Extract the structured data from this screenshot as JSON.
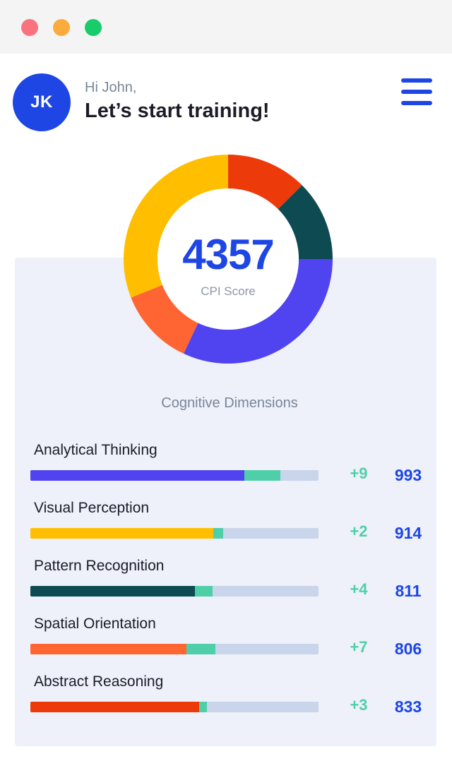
{
  "window": {
    "dots": [
      "#f9737f",
      "#fbab3c",
      "#19cc6b"
    ]
  },
  "user": {
    "initials": "JK",
    "avatar_color": "#1d46e5"
  },
  "greeting": {
    "small": "Hi John,",
    "big": "Let’s start training!"
  },
  "menu": {
    "color": "#1d46e5",
    "icon": "hamburger-menu-icon"
  },
  "score": {
    "value": "4357",
    "label": "CPI Score",
    "color": "#1d46e5"
  },
  "donut_segments": [
    {
      "name": "Abstract Reasoning",
      "fraction": 0.125,
      "color": "#ec3a0b"
    },
    {
      "name": "Pattern Recognition",
      "fraction": 0.125,
      "color": "#0d4a52"
    },
    {
      "name": "Analytical Thinking",
      "fraction": 0.32,
      "color": "#5044f0"
    },
    {
      "name": "Spatial Orientation",
      "fraction": 0.12,
      "color": "#ff6533"
    },
    {
      "name": "Visual Perception",
      "fraction": 0.31,
      "color": "#ffbf00"
    }
  ],
  "dimensions": {
    "title": "Cognitive Dimensions",
    "track_color": "#c9d5ea",
    "gain_color": "#4fcfa9",
    "delta_color": "#4fcfa9",
    "total_color": "#1d46e5",
    "items": [
      {
        "label": "Analytical Thinking",
        "delta": "+9",
        "total": "993",
        "color": "#5044f0",
        "fill_fraction": 0.743,
        "gain_fraction": 0.125
      },
      {
        "label": "Visual Perception",
        "delta": "+2",
        "total": "914",
        "color": "#ffbf00",
        "fill_fraction": 0.635,
        "gain_fraction": 0.035
      },
      {
        "label": "Pattern Recognition",
        "delta": "+4",
        "total": "811",
        "color": "#0d4a52",
        "fill_fraction": 0.572,
        "gain_fraction": 0.06
      },
      {
        "label": "Spatial Orientation",
        "delta": "+7",
        "total": "806",
        "color": "#ff6533",
        "fill_fraction": 0.542,
        "gain_fraction": 0.1
      },
      {
        "label": "Abstract Reasoning",
        "delta": "+3",
        "total": "833",
        "color": "#ec3a0b",
        "fill_fraction": 0.585,
        "gain_fraction": 0.027
      }
    ]
  }
}
